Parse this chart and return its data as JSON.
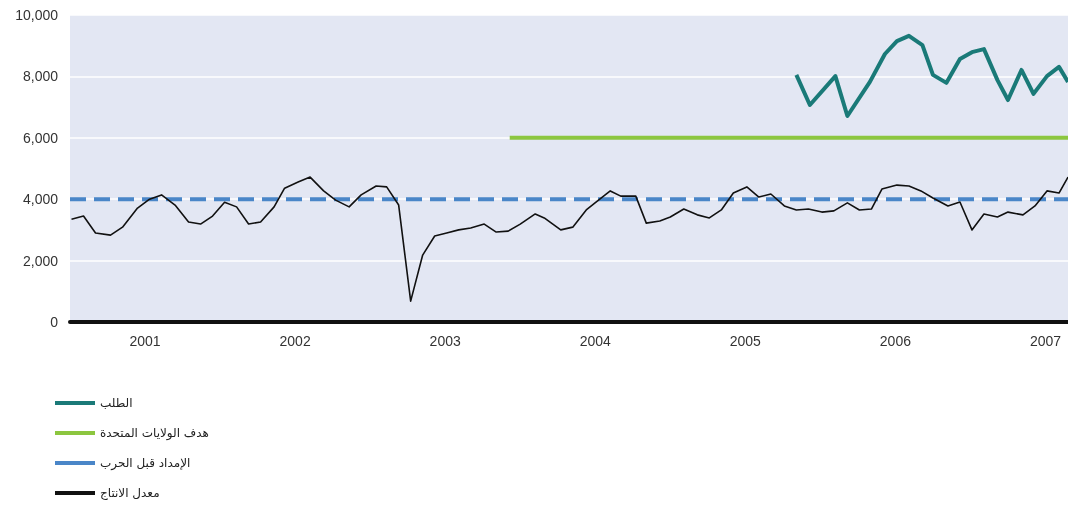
{
  "chart_data": {
    "type": "line",
    "xlim": [
      2001,
      2007.65
    ],
    "ylim": [
      0,
      10000
    ],
    "xticks": [
      {
        "value": 2001.5,
        "label": "2001"
      },
      {
        "value": 2002.5,
        "label": "2002"
      },
      {
        "value": 2003.5,
        "label": "2003"
      },
      {
        "value": 2004.5,
        "label": "2004"
      },
      {
        "value": 2005.5,
        "label": "2005"
      },
      {
        "value": 2006.5,
        "label": "2006"
      },
      {
        "value": 2007.5,
        "label": "2007"
      }
    ],
    "yticks": [
      0,
      {
        "value": 2000,
        "label": "2,000"
      },
      {
        "value": 4000,
        "label": "4,000"
      },
      {
        "value": 6000,
        "label": "6,000"
      },
      {
        "value": 8000,
        "label": "8,000"
      },
      {
        "value": 10000,
        "label": "10,000"
      }
    ],
    "grid": "y",
    "legend": "bottom left",
    "marker": "none",
    "series": [
      {
        "name": "الطلب",
        "color": "#1a7a78",
        "x": [
          2005.84,
          2005.93,
          2006.1,
          2006.18,
          2006.33,
          2006.43,
          2006.51,
          2006.59,
          2006.68,
          2006.75,
          2006.84,
          2006.93,
          2007.01,
          2007.09,
          2007.18,
          2007.25,
          2007.34,
          2007.42,
          2007.51,
          2007.59,
          2007.65
        ],
        "values": [
          8050,
          7070,
          8010,
          6710,
          7820,
          8730,
          9150,
          9320,
          9020,
          8050,
          7790,
          8570,
          8790,
          8890,
          7880,
          7230,
          8210,
          7430,
          8010,
          8310,
          7820
        ]
      },
      {
        "name": "هدف الولايات المتحدة",
        "color": "#8cc63f",
        "x": [
          2003.93,
          2007.65
        ],
        "values": [
          6000,
          6000
        ]
      },
      {
        "name": "الإمداد قبل الحرب",
        "color": "#4a86c8",
        "line_style": "dashed",
        "x": [
          2001,
          2007.65
        ],
        "values": [
          4000,
          4000
        ]
      },
      {
        "name": "معدل الانتاج",
        "color": "#111111",
        "x": [
          2001.01,
          2001.09,
          2001.17,
          2001.27,
          2001.35,
          2001.45,
          2001.53,
          2001.61,
          2001.7,
          2001.79,
          2001.87,
          2001.95,
          2002.03,
          2002.11,
          2002.19,
          2002.27,
          2002.36,
          2002.43,
          2002.52,
          2002.6,
          2002.69,
          2002.77,
          2002.86,
          2002.94,
          2003.04,
          2003.11,
          2003.19,
          2003.27,
          2003.35,
          2003.43,
          2003.51,
          2003.59,
          2003.67,
          2003.76,
          2003.84,
          2003.92,
          2004.0,
          2004.1,
          2004.16,
          2004.27,
          2004.35,
          2004.44,
          2004.53,
          2004.6,
          2004.67,
          2004.77,
          2004.84,
          2004.93,
          2005.0,
          2005.09,
          2005.18,
          2005.26,
          2005.34,
          2005.42,
          2005.51,
          2005.59,
          2005.67,
          2005.76,
          2005.84,
          2005.92,
          2006.01,
          2006.09,
          2006.18,
          2006.26,
          2006.34,
          2006.41,
          2006.51,
          2006.59,
          2006.67,
          2006.75,
          2006.85,
          2006.93,
          2007.01,
          2007.09,
          2007.18,
          2007.25,
          2007.35,
          2007.43,
          2007.51,
          2007.59,
          2007.65
        ],
        "values": [
          3350,
          3450,
          2900,
          2830,
          3090,
          3710,
          4000,
          4140,
          3810,
          3260,
          3190,
          3450,
          3900,
          3750,
          3190,
          3260,
          3750,
          4360,
          4560,
          4720,
          4270,
          3970,
          3750,
          4140,
          4430,
          4400,
          3810,
          680,
          2180,
          2800,
          2900,
          3000,
          3060,
          3190,
          2930,
          2960,
          3190,
          3520,
          3390,
          3000,
          3090,
          3650,
          4000,
          4270,
          4100,
          4100,
          3220,
          3290,
          3420,
          3680,
          3490,
          3390,
          3650,
          4200,
          4400,
          4070,
          4170,
          3780,
          3650,
          3680,
          3580,
          3620,
          3880,
          3650,
          3680,
          4330,
          4460,
          4430,
          4270,
          4040,
          3780,
          3910,
          3000,
          3520,
          3420,
          3580,
          3490,
          3780,
          4270,
          4200,
          4720
        ]
      }
    ]
  }
}
